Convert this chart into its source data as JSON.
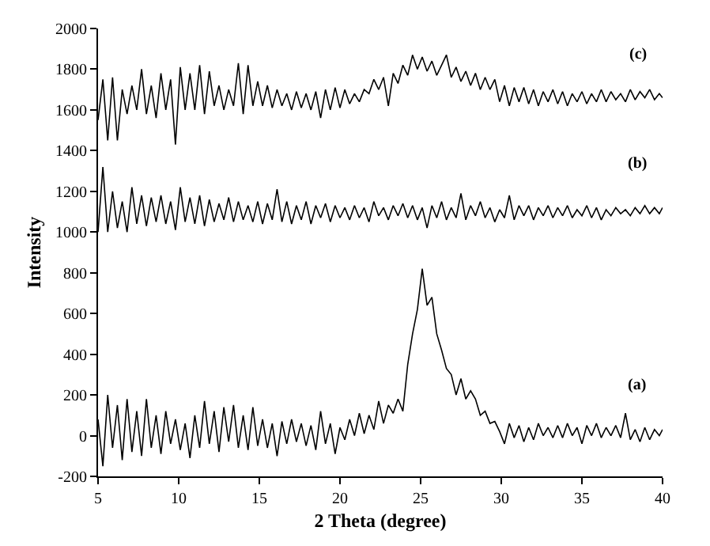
{
  "chart_data": {
    "type": "line",
    "xlabel": "2 Theta (degree)",
    "ylabel": "Intensity",
    "x": [
      5,
      5.3,
      5.6,
      5.9,
      6.2,
      6.5,
      6.8,
      7.1,
      7.4,
      7.7,
      8,
      8.3,
      8.6,
      8.9,
      9.2,
      9.5,
      9.8,
      10.1,
      10.4,
      10.7,
      11,
      11.3,
      11.6,
      11.9,
      12.2,
      12.5,
      12.8,
      13.1,
      13.4,
      13.7,
      14,
      14.3,
      14.6,
      14.9,
      15.2,
      15.5,
      15.8,
      16.1,
      16.4,
      16.7,
      17,
      17.3,
      17.6,
      17.9,
      18.2,
      18.5,
      18.8,
      19.1,
      19.4,
      19.7,
      20,
      20.3,
      20.6,
      20.9,
      21.2,
      21.5,
      21.8,
      22.1,
      22.4,
      22.7,
      23,
      23.3,
      23.6,
      23.9,
      24.2,
      24.5,
      24.8,
      25.1,
      25.4,
      25.7,
      26,
      26.3,
      26.6,
      26.9,
      27.2,
      27.5,
      27.8,
      28.1,
      28.4,
      28.7,
      29,
      29.3,
      29.6,
      29.9,
      30.2,
      30.5,
      30.8,
      31.1,
      31.4,
      31.7,
      32,
      32.3,
      32.6,
      32.9,
      33.2,
      33.5,
      33.8,
      34.1,
      34.4,
      34.7,
      35,
      35.3,
      35.6,
      35.9,
      36.2,
      36.5,
      36.8,
      37.1,
      37.4,
      37.7,
      38,
      38.3,
      38.6,
      38.9,
      39.2,
      39.5,
      39.8,
      40
    ],
    "series": [
      {
        "name": "(a)",
        "color": "#000000",
        "values": [
          80,
          -150,
          200,
          -60,
          150,
          -120,
          180,
          -80,
          120,
          -100,
          180,
          -60,
          100,
          -90,
          120,
          -40,
          80,
          -70,
          60,
          -110,
          100,
          -60,
          170,
          -40,
          120,
          -80,
          140,
          -30,
          150,
          -60,
          100,
          -70,
          140,
          -50,
          80,
          -60,
          60,
          -100,
          70,
          -40,
          80,
          -30,
          60,
          -50,
          50,
          -70,
          120,
          -40,
          60,
          -90,
          40,
          -20,
          80,
          0,
          110,
          10,
          100,
          30,
          170,
          60,
          150,
          110,
          180,
          120,
          350,
          500,
          620,
          820,
          640,
          680,
          500,
          420,
          330,
          300,
          200,
          280,
          180,
          220,
          180,
          100,
          120,
          60,
          70,
          20,
          -40,
          60,
          -10,
          50,
          -30,
          40,
          -20,
          60,
          0,
          40,
          -10,
          50,
          -10,
          60,
          0,
          40,
          -40,
          50,
          0,
          60,
          -10,
          40,
          0,
          50,
          -10,
          110,
          -20,
          30,
          -30,
          40,
          -20,
          30,
          0,
          30
        ]
      },
      {
        "name": "(b)",
        "color": "#000000",
        "values": [
          1000,
          1320,
          1000,
          1200,
          1020,
          1150,
          1000,
          1220,
          1040,
          1180,
          1030,
          1170,
          1050,
          1180,
          1040,
          1150,
          1010,
          1220,
          1050,
          1170,
          1040,
          1180,
          1030,
          1160,
          1050,
          1140,
          1060,
          1170,
          1050,
          1150,
          1060,
          1130,
          1050,
          1150,
          1040,
          1140,
          1060,
          1210,
          1050,
          1150,
          1040,
          1130,
          1060,
          1150,
          1040,
          1130,
          1070,
          1140,
          1050,
          1130,
          1070,
          1120,
          1060,
          1130,
          1070,
          1120,
          1050,
          1150,
          1080,
          1120,
          1060,
          1130,
          1080,
          1140,
          1070,
          1130,
          1060,
          1120,
          1020,
          1130,
          1070,
          1150,
          1060,
          1120,
          1070,
          1190,
          1060,
          1130,
          1080,
          1150,
          1070,
          1120,
          1050,
          1110,
          1070,
          1180,
          1060,
          1130,
          1080,
          1130,
          1060,
          1120,
          1080,
          1130,
          1070,
          1120,
          1080,
          1130,
          1070,
          1110,
          1080,
          1130,
          1070,
          1120,
          1060,
          1110,
          1080,
          1120,
          1090,
          1110,
          1080,
          1120,
          1090,
          1130,
          1090,
          1120,
          1090,
          1120
        ]
      },
      {
        "name": "(c)",
        "color": "#000000",
        "values": [
          1550,
          1750,
          1450,
          1760,
          1450,
          1700,
          1580,
          1720,
          1600,
          1800,
          1580,
          1720,
          1560,
          1780,
          1600,
          1750,
          1430,
          1810,
          1600,
          1780,
          1600,
          1820,
          1580,
          1790,
          1620,
          1720,
          1600,
          1700,
          1620,
          1830,
          1580,
          1820,
          1620,
          1740,
          1620,
          1720,
          1610,
          1700,
          1620,
          1680,
          1600,
          1690,
          1610,
          1680,
          1600,
          1690,
          1560,
          1700,
          1600,
          1710,
          1610,
          1700,
          1630,
          1680,
          1640,
          1700,
          1680,
          1750,
          1700,
          1760,
          1620,
          1780,
          1730,
          1820,
          1770,
          1870,
          1800,
          1860,
          1790,
          1840,
          1770,
          1820,
          1870,
          1760,
          1810,
          1740,
          1790,
          1720,
          1780,
          1700,
          1760,
          1700,
          1750,
          1640,
          1720,
          1620,
          1710,
          1640,
          1710,
          1630,
          1700,
          1620,
          1690,
          1640,
          1700,
          1630,
          1690,
          1620,
          1680,
          1640,
          1690,
          1630,
          1680,
          1640,
          1700,
          1640,
          1690,
          1650,
          1680,
          1640,
          1700,
          1650,
          1690,
          1660,
          1700,
          1650,
          1680,
          1660
        ]
      }
    ],
    "xlim": [
      5,
      40
    ],
    "xticks": [
      5,
      10,
      15,
      20,
      25,
      30,
      35,
      40
    ],
    "ylim": [
      -200,
      2000
    ],
    "yticks": [
      -200,
      0,
      200,
      400,
      600,
      800,
      1000,
      1200,
      1400,
      1600,
      1800,
      2000
    ],
    "grid": false,
    "legend": false,
    "marker": "none",
    "line_style": "solid"
  }
}
